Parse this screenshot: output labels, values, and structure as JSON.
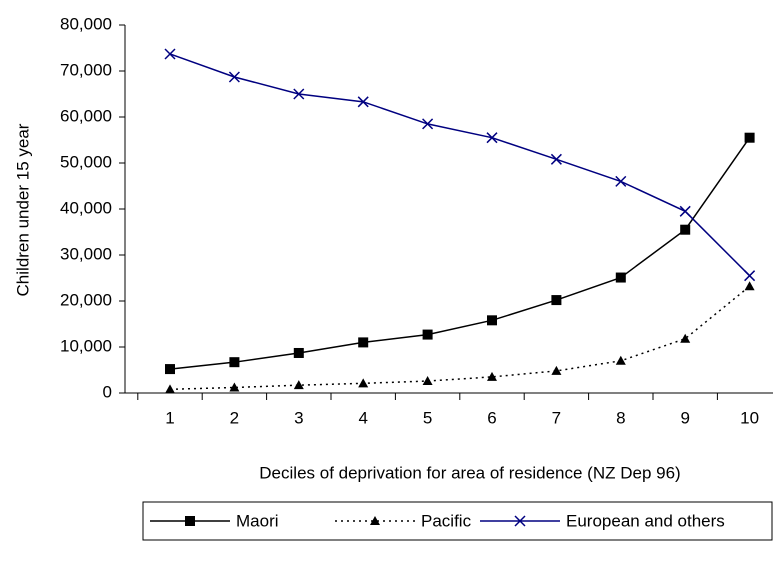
{
  "chart_data": {
    "type": "line",
    "x_label": "Deciles of deprivation for area of residence (NZ Dep 96)",
    "y_label": "Children under 15 year",
    "categories": [
      "1",
      "2",
      "3",
      "4",
      "5",
      "6",
      "7",
      "8",
      "9",
      "10"
    ],
    "series": [
      {
        "name": "Maori",
        "color": "#000000",
        "values": [
          5200,
          6700,
          8700,
          11000,
          12700,
          15800,
          20200,
          25100,
          35500,
          55500
        ]
      },
      {
        "name": "Pacific",
        "color": "#000000",
        "values": [
          800,
          1200,
          1700,
          2100,
          2600,
          3500,
          4800,
          7000,
          11800,
          23200
        ]
      },
      {
        "name": "European and others",
        "color": "#000080",
        "values": [
          73700,
          68700,
          65000,
          63300,
          58500,
          55500,
          50800,
          46000,
          39500,
          25500
        ]
      }
    ],
    "ylim": [
      0,
      80000
    ],
    "yticks": [
      0,
      {
        "value": 10000,
        "label": "10,000"
      },
      {
        "value": 20000,
        "label": "20,000"
      },
      {
        "value": 30000,
        "label": "30,000"
      },
      {
        "value": 40000,
        "label": "40,000"
      },
      {
        "value": 50000,
        "label": "50,000"
      },
      {
        "value": 60000,
        "label": "60,000"
      },
      {
        "value": 70000,
        "label": "70,000"
      },
      {
        "value": 80000,
        "label": "80,000"
      }
    ],
    "legend": "bottom"
  }
}
